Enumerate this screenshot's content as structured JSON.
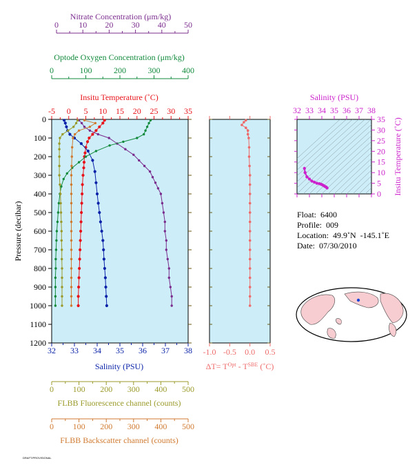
{
  "colors": {
    "nitrate": "#7b2d8e",
    "oxygen": "#118a3c",
    "temperature": "#e8121a",
    "salinity": "#0a22a8",
    "fluorescence": "#9a9a2a",
    "backscatter": "#d07a30",
    "deltaT": "#ee6a6a",
    "ts": "#cc22cc",
    "panel_bg": "#cdeef8",
    "axis_brown": "#6b5a14"
  },
  "axes": {
    "nitrate": {
      "label": "Nitrate Concentration (μm/kg)",
      "ticks": [
        "0",
        "10",
        "20",
        "30",
        "40",
        "50"
      ]
    },
    "oxygen": {
      "label": "Optode Oxygen Concentration (μm/kg)",
      "ticks": [
        "0",
        "100",
        "200",
        "300",
        "400"
      ]
    },
    "temperature": {
      "label": "Insitu Temperature (˚C)",
      "ticks": [
        "-5",
        "0",
        "5",
        "10",
        "15",
        "20",
        "25",
        "30",
        "35"
      ]
    },
    "salinity": {
      "label": "Salinity (PSU)",
      "ticks": [
        "32",
        "33",
        "34",
        "35",
        "36",
        "37",
        "38"
      ]
    },
    "pressure": {
      "label": "Pressure (decibar)",
      "ticks": [
        "0",
        "100",
        "200",
        "300",
        "400",
        "500",
        "600",
        "700",
        "800",
        "900",
        "1000",
        "1100",
        "1200"
      ]
    },
    "fluorescence": {
      "label": "FLBB Fluorescence channel (counts)",
      "ticks": [
        "0",
        "100",
        "200",
        "300",
        "400",
        "500"
      ]
    },
    "backscatter": {
      "label": "FLBB Backscatter channel (counts)",
      "ticks": [
        "0",
        "100",
        "200",
        "300",
        "400",
        "500"
      ]
    },
    "deltaT": {
      "label_main": "ΔT= T",
      "sup1": "Opt",
      "label_mid": " - T",
      "sup2": "SBE",
      "label_end": " (˚C)",
      "ticks": [
        "-1.0",
        "-0.5",
        "0.0",
        "0.5"
      ]
    },
    "ts_salinity": {
      "label": "Salinity (PSU)",
      "ticks": [
        "32",
        "33",
        "34",
        "35",
        "36",
        "37",
        "38"
      ]
    },
    "ts_temperature": {
      "label": "Insitu Temperature (˚C)",
      "ticks": [
        "0",
        "5",
        "10",
        "15",
        "20",
        "25",
        "30",
        "35"
      ]
    }
  },
  "info": {
    "float": "Float:  6400",
    "profile": "Profile:  009",
    "location": "Location:  49.9˚N  -145.1˚E",
    "date": "Date:  07/30/2010"
  },
  "stamp": "DRAFT/PROVISIONAL",
  "chart_data": [
    {
      "type": "scatter",
      "title": "",
      "ylabel": "Pressure (decibar)",
      "ylim": [
        1200,
        0
      ],
      "series": [
        {
          "name": "Insitu Temperature (˚C)",
          "xlim": [
            -5,
            35
          ],
          "points": [
            [
              10.5,
              5
            ],
            [
              10,
              20
            ],
            [
              9,
              40
            ],
            [
              8,
              60
            ],
            [
              7,
              80
            ],
            [
              6,
              100
            ],
            [
              5.5,
              120
            ],
            [
              5,
              150
            ],
            [
              4.8,
              180
            ],
            [
              4.6,
              200
            ],
            [
              4.5,
              230
            ],
            [
              4.4,
              260
            ],
            [
              4.2,
              300
            ],
            [
              4.0,
              350
            ],
            [
              3.9,
              400
            ],
            [
              3.8,
              450
            ],
            [
              3.7,
              500
            ],
            [
              3.6,
              550
            ],
            [
              3.5,
              600
            ],
            [
              3.4,
              650
            ],
            [
              3.3,
              700
            ],
            [
              3.2,
              750
            ],
            [
              3.1,
              800
            ],
            [
              3.0,
              850
            ],
            [
              2.9,
              900
            ],
            [
              2.8,
              950
            ],
            [
              2.8,
              1000
            ]
          ]
        },
        {
          "name": "Salinity (PSU)",
          "xlim": [
            32,
            38
          ],
          "points": [
            [
              32.55,
              5
            ],
            [
              32.6,
              20
            ],
            [
              32.65,
              40
            ],
            [
              32.7,
              60
            ],
            [
              32.8,
              80
            ],
            [
              33.0,
              100
            ],
            [
              33.3,
              130
            ],
            [
              33.6,
              170
            ],
            [
              33.8,
              220
            ],
            [
              33.9,
              280
            ],
            [
              33.95,
              340
            ],
            [
              34.0,
              400
            ],
            [
              34.05,
              450
            ],
            [
              34.1,
              500
            ],
            [
              34.15,
              550
            ],
            [
              34.2,
              600
            ],
            [
              34.25,
              650
            ],
            [
              34.28,
              700
            ],
            [
              34.3,
              750
            ],
            [
              34.33,
              800
            ],
            [
              34.36,
              850
            ],
            [
              34.38,
              900
            ],
            [
              34.4,
              950
            ],
            [
              34.42,
              1000
            ]
          ]
        },
        {
          "name": "Nitrate Concentration (μm/kg)",
          "xlim": [
            0,
            50
          ],
          "points": [
            [
              10,
              5
            ],
            [
              11,
              20
            ],
            [
              12,
              40
            ],
            [
              14,
              60
            ],
            [
              17,
              80
            ],
            [
              21,
              100
            ],
            [
              24,
              130
            ],
            [
              27,
              160
            ],
            [
              30,
              190
            ],
            [
              32,
              220
            ],
            [
              34,
              250
            ],
            [
              36,
              280
            ],
            [
              37,
              310
            ],
            [
              38,
              340
            ],
            [
              39,
              370
            ],
            [
              40,
              400
            ],
            [
              40.5,
              450
            ],
            [
              41,
              500
            ],
            [
              41.5,
              550
            ],
            [
              41.5,
              600
            ],
            [
              42,
              650
            ],
            [
              42,
              700
            ],
            [
              42.5,
              750
            ],
            [
              43,
              800
            ],
            [
              43,
              850
            ],
            [
              43.5,
              900
            ],
            [
              44,
              950
            ],
            [
              44,
              1000
            ]
          ]
        },
        {
          "name": "Optode Oxygen Concentration (μm/kg)",
          "xlim": [
            0,
            400
          ],
          "points": [
            [
              290,
              5
            ],
            [
              285,
              20
            ],
            [
              280,
              40
            ],
            [
              275,
              60
            ],
            [
              270,
              80
            ],
            [
              250,
              100
            ],
            [
              210,
              120
            ],
            [
              170,
              140
            ],
            [
              130,
              170
            ],
            [
              100,
              200
            ],
            [
              80,
              230
            ],
            [
              60,
              260
            ],
            [
              45,
              290
            ],
            [
              35,
              320
            ],
            [
              28,
              360
            ],
            [
              24,
              400
            ],
            [
              21,
              450
            ],
            [
              19,
              500
            ],
            [
              17,
              550
            ],
            [
              15,
              600
            ],
            [
              14,
              650
            ],
            [
              13,
              700
            ],
            [
              12,
              750
            ],
            [
              12,
              800
            ],
            [
              11,
              850
            ],
            [
              11,
              900
            ],
            [
              11,
              950
            ],
            [
              11,
              1000
            ]
          ]
        },
        {
          "name": "FLBB Fluorescence channel (counts)",
          "xlim": [
            0,
            500
          ],
          "points": [
            [
              95,
              5
            ],
            [
              90,
              20
            ],
            [
              80,
              40
            ],
            [
              60,
              60
            ],
            [
              40,
              80
            ],
            [
              30,
              100
            ],
            [
              28,
              130
            ],
            [
              28,
              160
            ],
            [
              28,
              200
            ],
            [
              28,
              250
            ],
            [
              28,
              300
            ],
            [
              30,
              350
            ],
            [
              32,
              400
            ],
            [
              33,
              450
            ],
            [
              34,
              500
            ],
            [
              35,
              550
            ],
            [
              36,
              600
            ],
            [
              36,
              650
            ],
            [
              37,
              700
            ],
            [
              37,
              750
            ],
            [
              38,
              800
            ],
            [
              38,
              850
            ],
            [
              38,
              900
            ],
            [
              38,
              950
            ],
            [
              38,
              1000
            ]
          ]
        },
        {
          "name": "FLBB Backscatter channel (counts)",
          "xlim": [
            0,
            500
          ],
          "points": [
            [
              120,
              5
            ],
            [
              160,
              20
            ],
            [
              140,
              40
            ],
            [
              100,
              60
            ],
            [
              85,
              80
            ],
            [
              78,
              100
            ],
            [
              75,
              150
            ],
            [
              74,
              200
            ],
            [
              73,
              250
            ],
            [
              72,
              300
            ],
            [
              72,
              350
            ],
            [
              72,
              400
            ],
            [
              72,
              450
            ],
            [
              72,
              500
            ],
            [
              72,
              550
            ],
            [
              72,
              600
            ],
            [
              72,
              650
            ],
            [
              72,
              700
            ],
            [
              72,
              750
            ],
            [
              72,
              800
            ],
            [
              72,
              850
            ],
            [
              72,
              900
            ],
            [
              72,
              950
            ],
            [
              72,
              1000
            ]
          ]
        }
      ]
    },
    {
      "type": "scatter",
      "xlabel": "ΔT= T^Opt - T^SBE (˚C)",
      "xlim": [
        -1.0,
        0.5
      ],
      "ylim": [
        1200,
        0
      ],
      "series": [
        {
          "name": "",
          "points": [
            [
              -0.1,
              5
            ],
            [
              -0.15,
              15
            ],
            [
              -0.2,
              30
            ],
            [
              -0.1,
              45
            ],
            [
              -0.05,
              60
            ],
            [
              -0.05,
              80
            ],
            [
              -0.03,
              100
            ],
            [
              -0.02,
              150
            ],
            [
              -0.02,
              200
            ],
            [
              -0.01,
              250
            ],
            [
              0,
              300
            ],
            [
              0,
              350
            ],
            [
              0,
              400
            ],
            [
              0,
              450
            ],
            [
              0,
              500
            ],
            [
              0,
              550
            ],
            [
              0,
              600
            ],
            [
              0,
              650
            ],
            [
              0,
              700
            ],
            [
              0,
              750
            ],
            [
              0,
              800
            ],
            [
              0,
              850
            ],
            [
              0,
              900
            ],
            [
              0,
              950
            ],
            [
              0,
              1000
            ]
          ]
        }
      ]
    },
    {
      "type": "scatter",
      "xlabel": "Salinity (PSU)",
      "ylabel": "Insitu Temperature (˚C)",
      "xlim": [
        32,
        38
      ],
      "ylim": [
        0,
        35
      ],
      "series": [
        {
          "name": "",
          "points": [
            [
              32.6,
              12
            ],
            [
              32.65,
              10
            ],
            [
              32.8,
              8
            ],
            [
              33.0,
              7
            ],
            [
              33.2,
              6
            ],
            [
              33.4,
              5.5
            ],
            [
              33.6,
              5
            ],
            [
              33.8,
              4.8
            ],
            [
              33.95,
              4.5
            ],
            [
              34.05,
              4.2
            ],
            [
              34.15,
              3.9
            ],
            [
              34.25,
              3.5
            ],
            [
              34.35,
              3.2
            ],
            [
              34.42,
              2.8
            ]
          ]
        }
      ]
    }
  ]
}
